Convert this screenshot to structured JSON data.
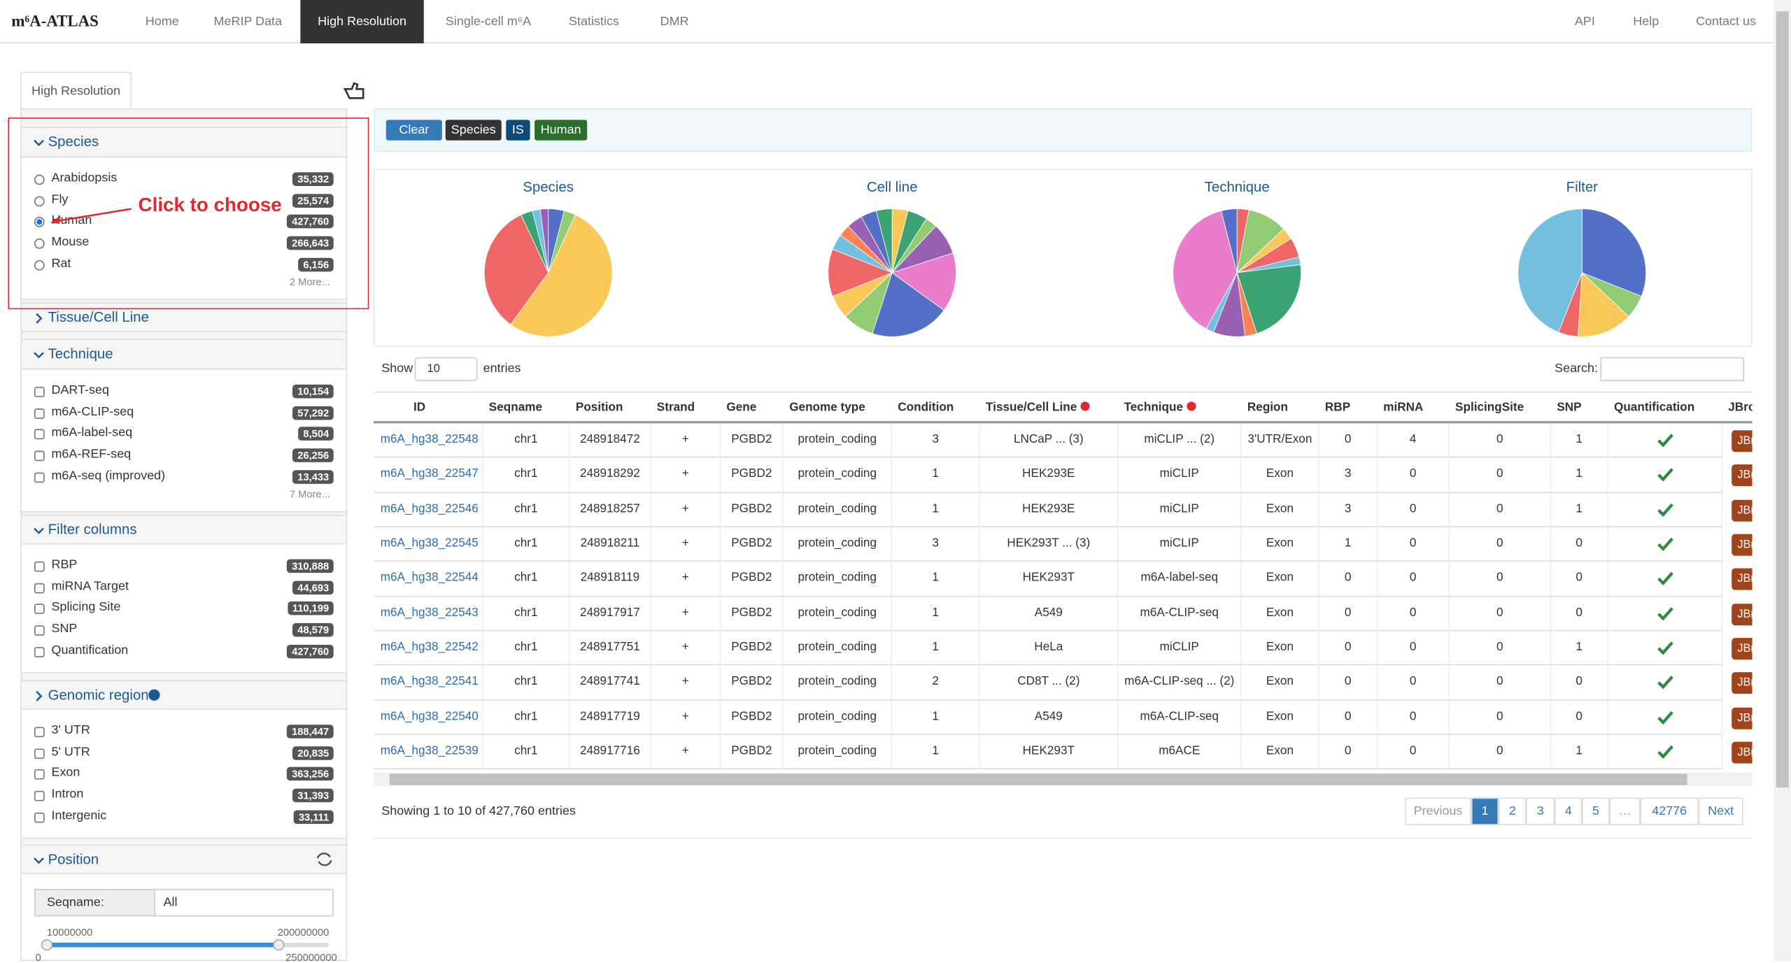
{
  "nav": {
    "brand": "m⁶A-ATLAS",
    "items": [
      "Home",
      "MeRIP Data",
      "High Resolution",
      "Single-cell m⁶A",
      "Statistics",
      "DMR"
    ],
    "active": 2,
    "right": [
      "API",
      "Help",
      "Contact us"
    ]
  },
  "sidebar": {
    "tab": "High Resolution",
    "sections": [
      {
        "title": "Species",
        "expanded": true,
        "input": "radio",
        "options": [
          {
            "label": "Arabidopsis",
            "count": "35,332"
          },
          {
            "label": "Fly",
            "count": "25,574"
          },
          {
            "label": "Human",
            "count": "427,760",
            "selected": true
          },
          {
            "label": "Mouse",
            "count": "266,643"
          },
          {
            "label": "Rat",
            "count": "6,156"
          }
        ],
        "more": "2 More..."
      },
      {
        "title": "Tissue/Cell Line",
        "expanded": false
      },
      {
        "title": "Technique",
        "expanded": true,
        "input": "checkbox",
        "options": [
          {
            "label": "DART-seq",
            "count": "10,154"
          },
          {
            "label": "m6A-CLIP-seq",
            "count": "57,292"
          },
          {
            "label": "m6A-label-seq",
            "count": "8,504"
          },
          {
            "label": "m6A-REF-seq",
            "count": "26,256"
          },
          {
            "label": "m6A-seq (improved)",
            "count": "13,433"
          }
        ],
        "more": "7 More..."
      },
      {
        "title": "Filter columns",
        "expanded": true,
        "input": "checkbox",
        "options": [
          {
            "label": "RBP",
            "count": "310,888"
          },
          {
            "label": "miRNA Target",
            "count": "44,693"
          },
          {
            "label": "Splicing Site",
            "count": "110,199"
          },
          {
            "label": "SNP",
            "count": "48,579"
          },
          {
            "label": "Quantification",
            "count": "427,760"
          }
        ]
      },
      {
        "title": "Genomic region",
        "expanded": false,
        "input": "checkbox",
        "options": [
          {
            "label": "3' UTR",
            "count": "188,447"
          },
          {
            "label": "5' UTR",
            "count": "20,835"
          },
          {
            "label": "Exon",
            "count": "363,256"
          },
          {
            "label": "Intron",
            "count": "31,393"
          },
          {
            "label": "Intergenic",
            "count": "33,111"
          }
        ]
      },
      {
        "title": "Position",
        "expanded": true,
        "seqname_label": "Seqname:",
        "seqname_value": "All",
        "slider": {
          "low": "10000000",
          "high": "200000000",
          "min": "0",
          "max": "250000000"
        }
      }
    ]
  },
  "annotation": "Click to choose",
  "filters": {
    "clear": "Clear",
    "tags": [
      "Species",
      "IS",
      "Human"
    ]
  },
  "charts": [
    "Species",
    "Cell line",
    "Technique",
    "Filter"
  ],
  "table": {
    "show": "Show",
    "length": "10",
    "entries": "entries",
    "search": "Search:",
    "headers": [
      "ID",
      "Seqname",
      "Position",
      "Strand",
      "Gene",
      "Genome type",
      "Condition",
      "Tissue/Cell Line",
      "Technique",
      "Region",
      "RBP",
      "miRNA",
      "SplicingSite",
      "SNP",
      "Quantification",
      "JBrowse"
    ],
    "rows": [
      [
        "m6A_hg38_22548",
        "chr1",
        248918472,
        "+",
        "PGBD2",
        "protein_coding",
        3,
        "LNCaP ... (3)",
        "miCLIP ... (2)",
        "3'UTR/Exon",
        0,
        4,
        0,
        1
      ],
      [
        "m6A_hg38_22547",
        "chr1",
        248918292,
        "+",
        "PGBD2",
        "protein_coding",
        1,
        "HEK293E",
        "miCLIP",
        "Exon",
        3,
        0,
        0,
        1
      ],
      [
        "m6A_hg38_22546",
        "chr1",
        248918257,
        "+",
        "PGBD2",
        "protein_coding",
        1,
        "HEK293E",
        "miCLIP",
        "Exon",
        3,
        0,
        0,
        1
      ],
      [
        "m6A_hg38_22545",
        "chr1",
        248918211,
        "+",
        "PGBD2",
        "protein_coding",
        3,
        "HEK293T ... (3)",
        "miCLIP",
        "Exon",
        1,
        0,
        0,
        0
      ],
      [
        "m6A_hg38_22544",
        "chr1",
        248918119,
        "+",
        "PGBD2",
        "protein_coding",
        1,
        "HEK293T",
        "m6A-label-seq",
        "Exon",
        0,
        0,
        0,
        0
      ],
      [
        "m6A_hg38_22543",
        "chr1",
        248917917,
        "+",
        "PGBD2",
        "protein_coding",
        1,
        "A549",
        "m6A-CLIP-seq",
        "Exon",
        0,
        0,
        0,
        0
      ],
      [
        "m6A_hg38_22542",
        "chr1",
        248917751,
        "+",
        "PGBD2",
        "protein_coding",
        1,
        "HeLa",
        "miCLIP",
        "Exon",
        0,
        0,
        0,
        1
      ],
      [
        "m6A_hg38_22541",
        "chr1",
        248917741,
        "+",
        "PGBD2",
        "protein_coding",
        2,
        "CD8T ... (2)",
        "m6A-CLIP-seq ... (2)",
        "Exon",
        0,
        0,
        0,
        0
      ],
      [
        "m6A_hg38_22540",
        "chr1",
        248917719,
        "+",
        "PGBD2",
        "protein_coding",
        1,
        "A549",
        "m6A-CLIP-seq",
        "Exon",
        0,
        0,
        0,
        0
      ],
      [
        "m6A_hg38_22539",
        "chr1",
        248917716,
        "+",
        "PGBD2",
        "protein_coding",
        1,
        "HEK293T",
        "m6ACE",
        "Exon",
        0,
        0,
        0,
        1
      ]
    ],
    "jbrowse": "JBrowse",
    "info": "Showing 1 to 10 of 427,760 entries",
    "pages": [
      "Previous",
      "1",
      "2",
      "3",
      "4",
      "5",
      "…",
      "42776",
      "Next"
    ],
    "active_page": 1
  }
}
